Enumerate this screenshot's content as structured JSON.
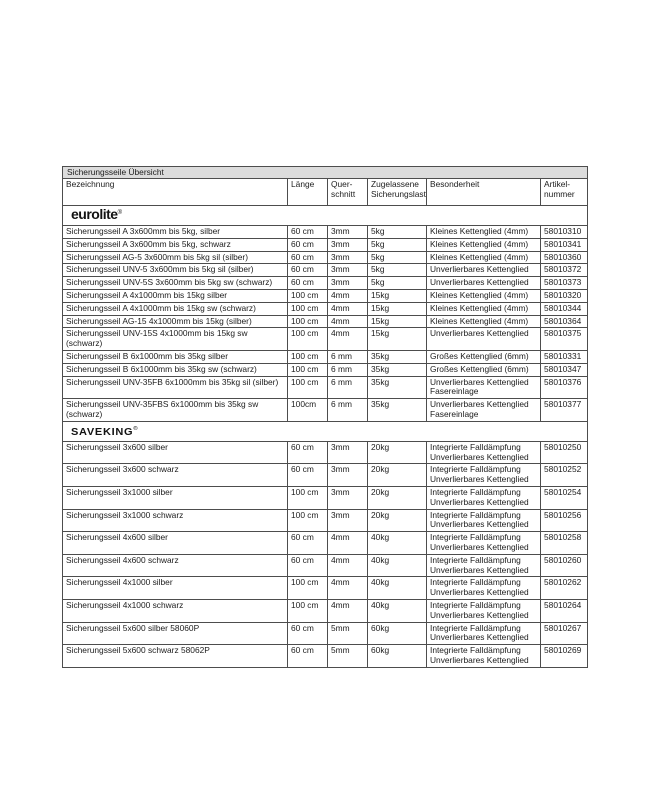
{
  "colors": {
    "title_bar_bg": "#dcdcdc",
    "border": "#4d4d4d",
    "text": "#1c1c1c"
  },
  "table": {
    "title": "Sicherungsseile Übersicht",
    "reg_mark": "®",
    "columns": [
      "Bezeichnung",
      "Länge",
      "Quer-\nschnitt",
      "Zugelassene\nSicherungslast",
      "Besonderheit",
      "Artikel-\nnummer"
    ],
    "column_keys": [
      "bezeichnung",
      "laenge",
      "querschnitt",
      "last",
      "besonderheit",
      "artikel"
    ]
  },
  "sections": [
    {
      "brand": "eurolite",
      "rows": [
        {
          "bezeichnung": "Sicherungsseil A 3x600mm bis 5kg, silber",
          "laenge": "60 cm",
          "querschnitt": "3mm",
          "last": "5kg",
          "besonderheit": [
            "Kleines Kettenglied (4mm)"
          ],
          "artikel": "58010310"
        },
        {
          "bezeichnung": "Sicherungsseil A 3x600mm bis 5kg, schwarz",
          "laenge": "60 cm",
          "querschnitt": "3mm",
          "last": "5kg",
          "besonderheit": [
            "Kleines Kettenglied (4mm)"
          ],
          "artikel": "58010341"
        },
        {
          "bezeichnung": "Sicherungsseil AG-5 3x600mm bis 5kg sil (silber)",
          "laenge": "60 cm",
          "querschnitt": "3mm",
          "last": "5kg",
          "besonderheit": [
            "Kleines Kettenglied (4mm)"
          ],
          "artikel": "58010360"
        },
        {
          "bezeichnung": "Sicherungsseil UNV-5 3x600mm bis 5kg sil (silber)",
          "laenge": "60 cm",
          "querschnitt": "3mm",
          "last": "5kg",
          "besonderheit": [
            "Unverlierbares Kettenglied"
          ],
          "artikel": "58010372"
        },
        {
          "bezeichnung": "Sicherungsseil UNV-5S 3x600mm bis 5kg sw (schwarz)",
          "laenge": "60 cm",
          "querschnitt": "3mm",
          "last": "5kg",
          "besonderheit": [
            "Unverlierbares Kettenglied"
          ],
          "artikel": "58010373"
        },
        {
          "bezeichnung": "Sicherungsseil A 4x1000mm bis 15kg silber",
          "laenge": "100 cm",
          "querschnitt": "4mm",
          "last": "15kg",
          "besonderheit": [
            "Kleines Kettenglied (4mm)"
          ],
          "artikel": "58010320"
        },
        {
          "bezeichnung": "Sicherungsseil A 4x1000mm bis 15kg sw (schwarz)",
          "laenge": "100 cm",
          "querschnitt": "4mm",
          "last": "15kg",
          "besonderheit": [
            "Kleines Kettenglied (4mm)"
          ],
          "artikel": "58010344"
        },
        {
          "bezeichnung": "Sicherungsseil AG-15 4x1000mm bis 15kg (silber)",
          "laenge": "100 cm",
          "querschnitt": "4mm",
          "last": "15kg",
          "besonderheit": [
            "Kleines Kettenglied (4mm)"
          ],
          "artikel": "58010364"
        },
        {
          "bezeichnung": "Sicherungsseil UNV-15S 4x1000mm bis 15kg sw (schwarz)",
          "laenge": "100 cm",
          "querschnitt": "4mm",
          "last": "15kg",
          "besonderheit": [
            "Unverlierbares Kettenglied"
          ],
          "artikel": "58010375"
        },
        {
          "bezeichnung": "Sicherungsseil B 6x1000mm bis 35kg silber",
          "laenge": "100 cm",
          "querschnitt": "6 mm",
          "last": "35kg",
          "besonderheit": [
            "Großes Kettenglied (6mm)"
          ],
          "artikel": "58010331"
        },
        {
          "bezeichnung": "Sicherungsseil B 6x1000mm bis 35kg sw (schwarz)",
          "laenge": "100 cm",
          "querschnitt": "6 mm",
          "last": "35kg",
          "besonderheit": [
            "Großes Kettenglied (6mm)"
          ],
          "artikel": "58010347"
        },
        {
          "bezeichnung": "Sicherungsseil UNV-35FB 6x1000mm bis 35kg sil (silber)",
          "laenge": "100 cm",
          "querschnitt": "6 mm",
          "last": "35kg",
          "besonderheit": [
            "Unverlierbares Kettenglied",
            "Fasereinlage"
          ],
          "artikel": "58010376"
        },
        {
          "bezeichnung": "Sicherungsseil UNV-35FBS 6x1000mm bis 35kg sw (schwarz)",
          "laenge": "100cm",
          "querschnitt": "6 mm",
          "last": "35kg",
          "besonderheit": [
            "Unverlierbares Kettenglied",
            "Fasereinlage"
          ],
          "artikel": "58010377"
        }
      ]
    },
    {
      "brand": "SAVEKING",
      "rows": [
        {
          "bezeichnung": "Sicherungsseil 3x600 silber",
          "laenge": "60 cm",
          "querschnitt": "3mm",
          "last": "20kg",
          "besonderheit": [
            "Integrierte Falldämpfung",
            "Unverlierbares Kettenglied"
          ],
          "artikel": "58010250"
        },
        {
          "bezeichnung": "Sicherungsseil 3x600 schwarz",
          "laenge": "60 cm",
          "querschnitt": "3mm",
          "last": "20kg",
          "besonderheit": [
            "Integrierte Falldämpfung",
            "Unverlierbares Kettenglied"
          ],
          "artikel": "58010252"
        },
        {
          "bezeichnung": "Sicherungsseil 3x1000 silber",
          "laenge": "100 cm",
          "querschnitt": "3mm",
          "last": "20kg",
          "besonderheit": [
            "Integrierte Falldämpfung",
            "Unverlierbares Kettenglied"
          ],
          "artikel": "58010254"
        },
        {
          "bezeichnung": "Sicherungsseil 3x1000 schwarz",
          "laenge": "100 cm",
          "querschnitt": "3mm",
          "last": "20kg",
          "besonderheit": [
            "Integrierte Falldämpfung",
            "Unverlierbares Kettenglied"
          ],
          "artikel": "58010256"
        },
        {
          "bezeichnung": "Sicherungsseil 4x600 silber",
          "laenge": "60 cm",
          "querschnitt": "4mm",
          "last": "40kg",
          "besonderheit": [
            "Integrierte Falldämpfung",
            "Unverlierbares Kettenglied"
          ],
          "artikel": "58010258"
        },
        {
          "bezeichnung": "Sicherungsseil 4x600 schwarz",
          "laenge": "60 cm",
          "querschnitt": "4mm",
          "last": "40kg",
          "besonderheit": [
            "Integrierte Falldämpfung",
            "Unverlierbares Kettenglied"
          ],
          "artikel": "58010260"
        },
        {
          "bezeichnung": "Sicherungsseil 4x1000 silber",
          "laenge": "100 cm",
          "querschnitt": "4mm",
          "last": "40kg",
          "besonderheit": [
            "Integrierte Falldämpfung",
            "Unverlierbares Kettenglied"
          ],
          "artikel": "58010262"
        },
        {
          "bezeichnung": "Sicherungsseil 4x1000 schwarz",
          "laenge": "100 cm",
          "querschnitt": "4mm",
          "last": "40kg",
          "besonderheit": [
            "Integrierte Falldämpfung",
            "Unverlierbares Kettenglied"
          ],
          "artikel": "58010264"
        },
        {
          "bezeichnung": "Sicherungsseil 5x600 silber 58060P",
          "laenge": "60 cm",
          "querschnitt": "5mm",
          "last": "60kg",
          "besonderheit": [
            "Integrierte Falldämpfung",
            "Unverlierbares Kettenglied"
          ],
          "artikel": "58010267"
        },
        {
          "bezeichnung": "Sicherungsseil 5x600 schwarz 58062P",
          "laenge": "60 cm",
          "querschnitt": "5mm",
          "last": "60kg",
          "besonderheit": [
            "Integrierte Falldämpfung",
            "Unverlierbares Kettenglied"
          ],
          "artikel": "58010269"
        }
      ]
    }
  ]
}
